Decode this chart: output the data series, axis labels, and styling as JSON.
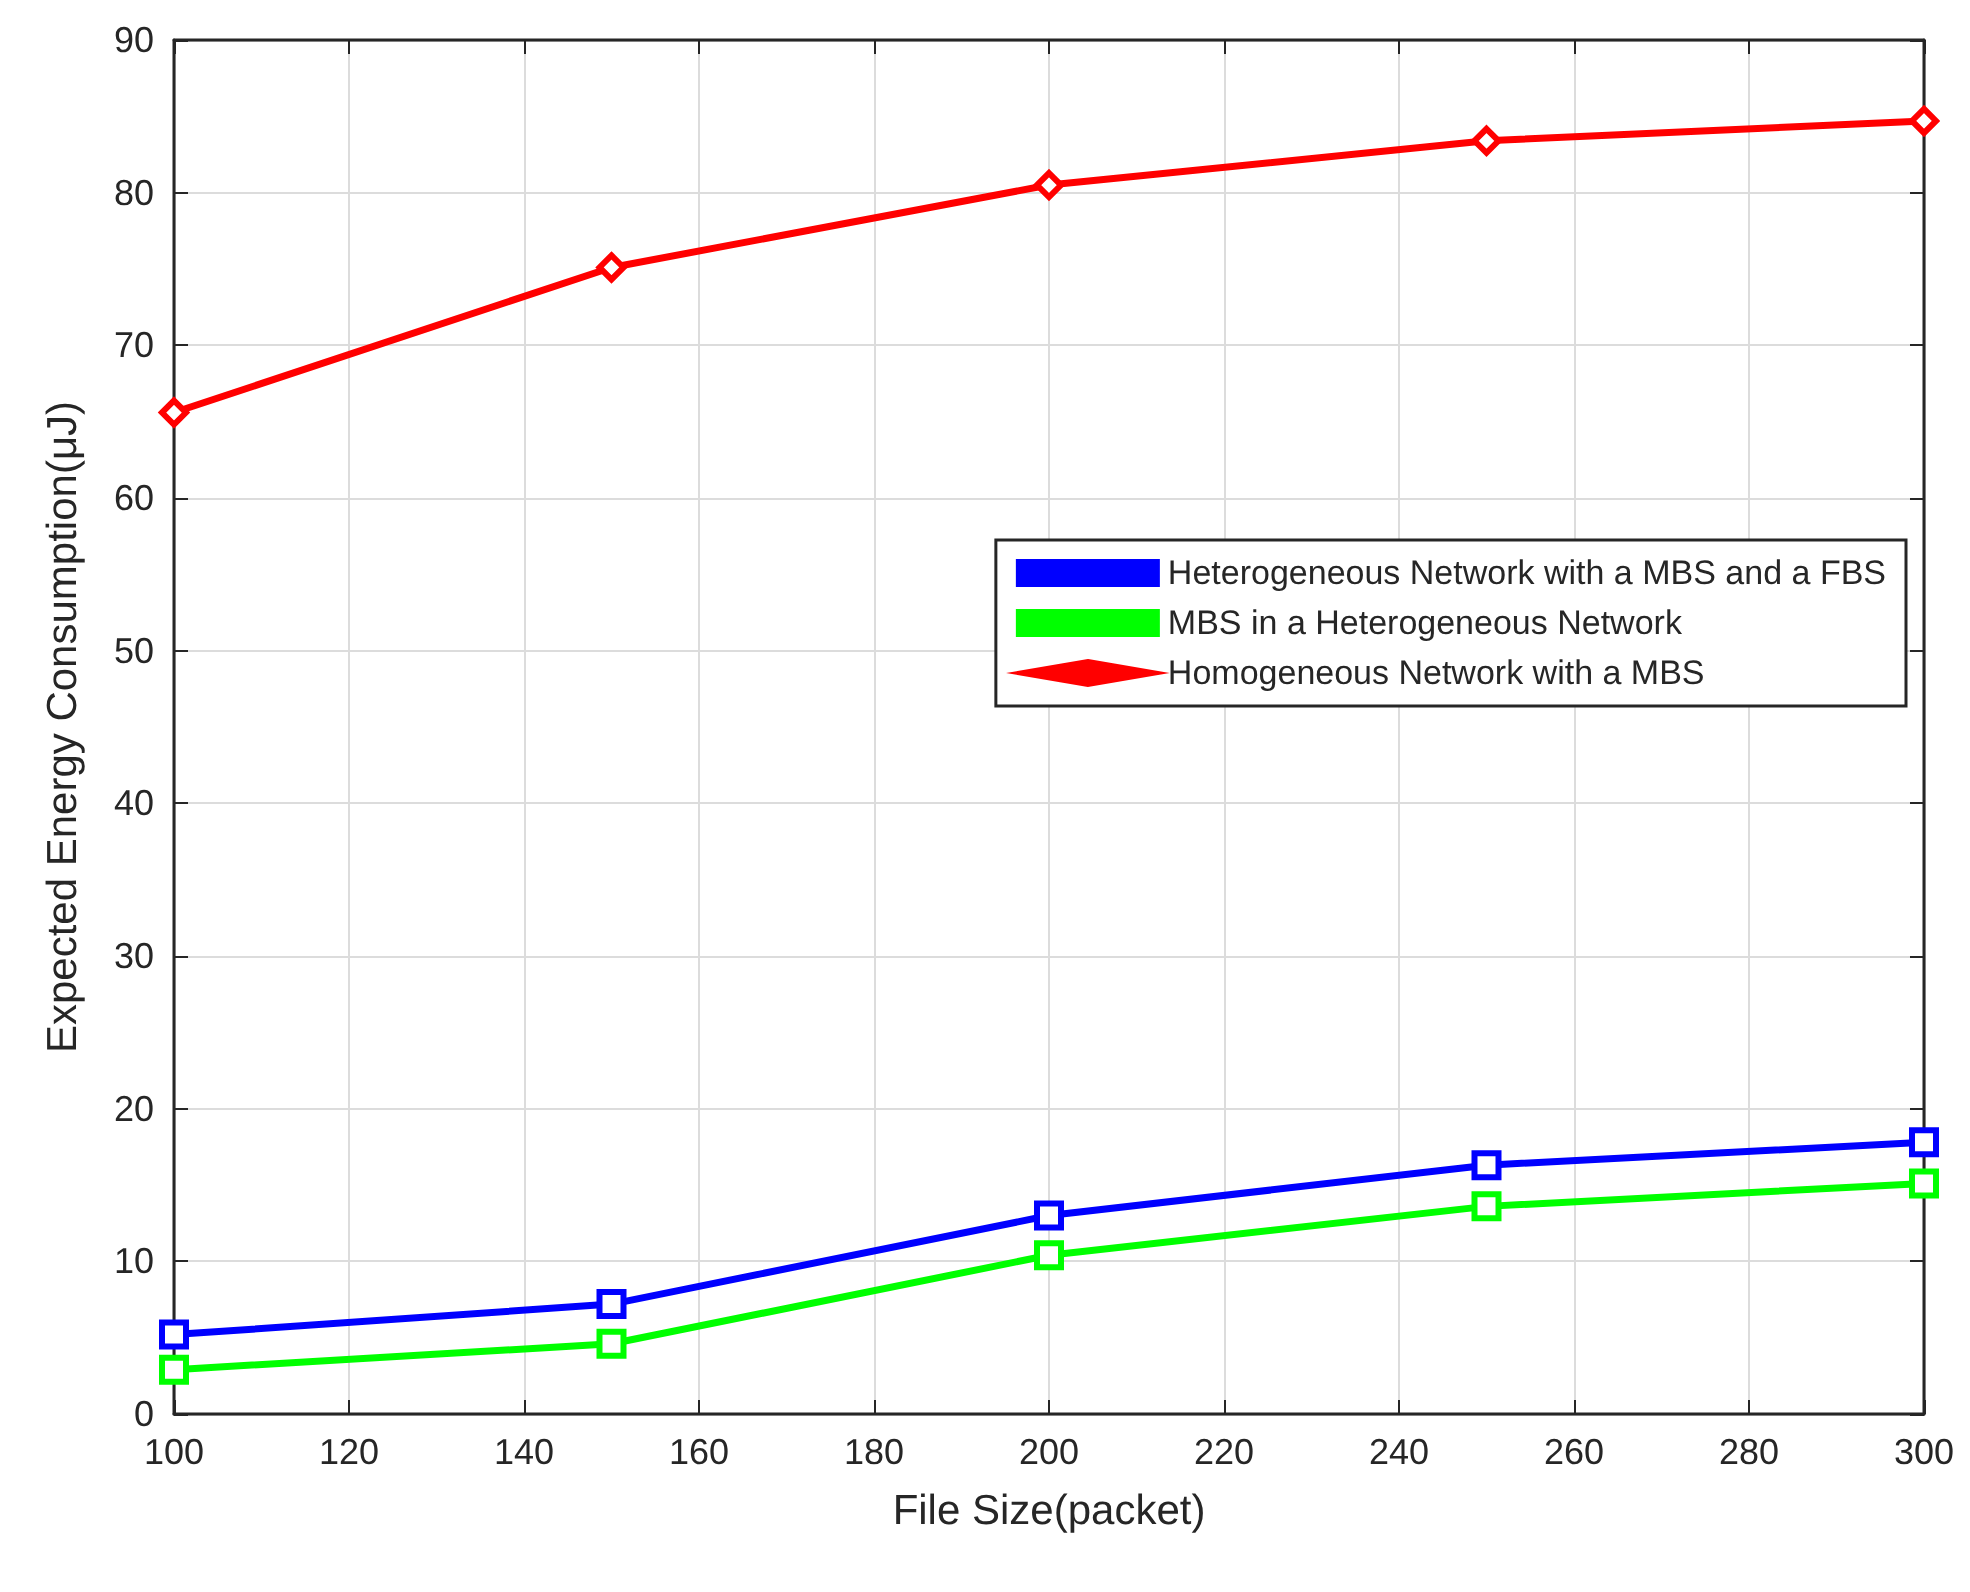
{
  "chart_data": {
    "type": "line",
    "xlabel": "File Size(packet)",
    "ylabel": "Expected Energy Consumption(μJ)",
    "x": [
      100,
      150,
      200,
      250,
      300
    ],
    "series": [
      {
        "name": "Heterogeneous Network with a MBS and a FBS",
        "color": "#0000ff",
        "marker": "square",
        "values": [
          5.2,
          7.2,
          13.0,
          16.3,
          17.8
        ]
      },
      {
        "name": "MBS in a Heterogeneous Network",
        "color": "#00ff00",
        "marker": "square",
        "values": [
          2.9,
          4.6,
          10.4,
          13.6,
          15.1
        ]
      },
      {
        "name": "Homogeneous Network with a MBS",
        "color": "#ff0000",
        "marker": "diamond",
        "values": [
          65.6,
          75.1,
          80.5,
          83.4,
          84.7
        ]
      }
    ],
    "xlim": [
      100,
      300
    ],
    "xticks": [
      100,
      120,
      140,
      160,
      180,
      200,
      220,
      240,
      260,
      280,
      300
    ],
    "ylim": [
      0,
      90
    ],
    "yticks": [
      0,
      10,
      20,
      30,
      40,
      50,
      60,
      70,
      80,
      90
    ],
    "grid": true,
    "legend": "right",
    "line_style": "solid"
  }
}
